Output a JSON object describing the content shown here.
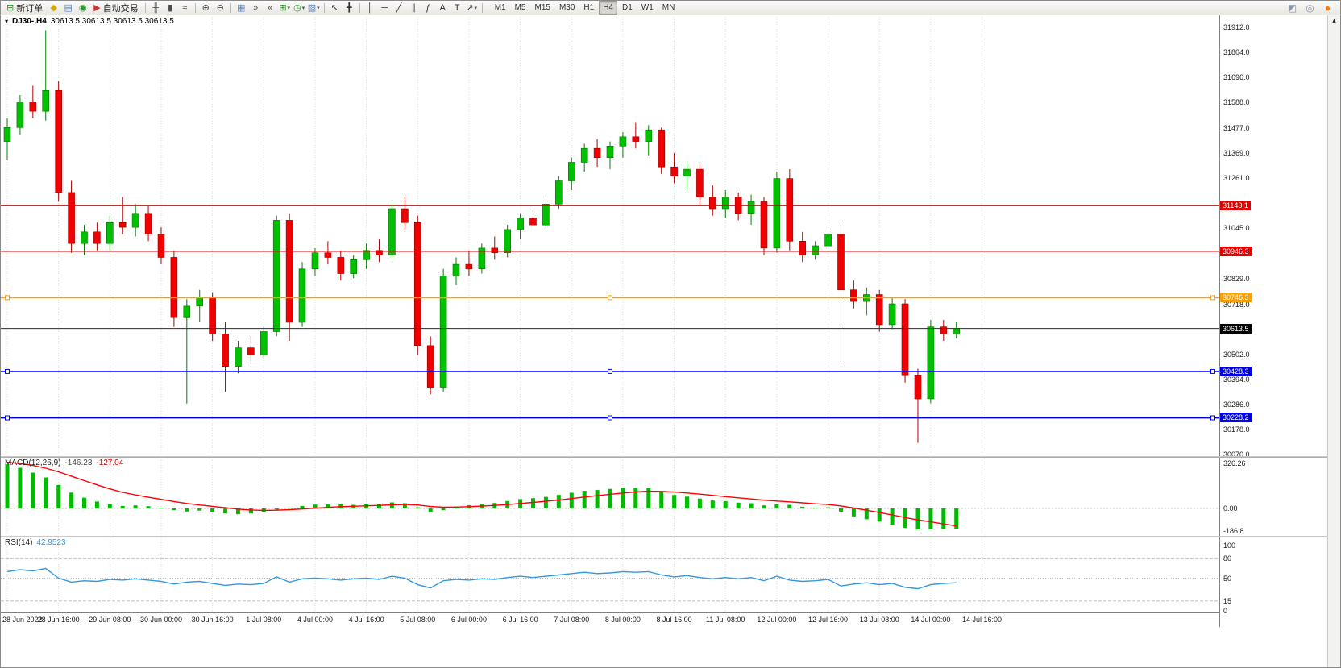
{
  "toolbar": {
    "items": [
      {
        "type": "button",
        "name": "new-order-button",
        "glyph": "⊞",
        "color": "#1f9d1f",
        "label": "新订单"
      },
      {
        "type": "icon",
        "name": "market-watch-icon",
        "glyph": "◆",
        "color": "#d9a600"
      },
      {
        "type": "icon",
        "name": "data-window-icon",
        "glyph": "▤",
        "color": "#5b7fae"
      },
      {
        "type": "icon",
        "name": "navigator-icon",
        "glyph": "◉",
        "color": "#2a9d2a"
      },
      {
        "type": "button",
        "name": "auto-trading-button",
        "glyph": "▶",
        "color": "#cc3333",
        "label": "自动交易"
      },
      {
        "type": "sep"
      },
      {
        "type": "icon",
        "name": "bar-chart-type-icon",
        "glyph": "╫",
        "color": "#4a4a4a"
      },
      {
        "type": "icon",
        "name": "candlestick-type-icon",
        "glyph": "▮",
        "color": "#4a4a4a"
      },
      {
        "type": "icon",
        "name": "line-chart-type-icon",
        "glyph": "≈",
        "color": "#4a4a4a"
      },
      {
        "type": "sep"
      },
      {
        "type": "icon",
        "name": "zoom-in-icon",
        "glyph": "⊕",
        "color": "#4a4a4a"
      },
      {
        "type": "icon",
        "name": "zoom-out-icon",
        "glyph": "⊖",
        "color": "#4a4a4a"
      },
      {
        "type": "sep"
      },
      {
        "type": "icon",
        "name": "tile-windows-icon",
        "glyph": "▦",
        "color": "#5b7fae"
      },
      {
        "type": "icon",
        "name": "auto-scroll-icon",
        "glyph": "»",
        "color": "#4a4a4a"
      },
      {
        "type": "icon",
        "name": "chart-shift-icon",
        "glyph": "«",
        "color": "#4a4a4a"
      },
      {
        "type": "dropdown",
        "name": "indicators-menu",
        "glyph": "⊞",
        "color": "#2a9d2a"
      },
      {
        "type": "dropdown",
        "name": "periods-menu",
        "glyph": "◷",
        "color": "#2a9d2a"
      },
      {
        "type": "dropdown",
        "name": "templates-menu",
        "glyph": "▧",
        "color": "#5b7fae"
      },
      {
        "type": "sep"
      },
      {
        "type": "icon",
        "name": "cursor-icon",
        "glyph": "↖",
        "color": "#333333"
      },
      {
        "type": "icon",
        "name": "crosshair-icon",
        "glyph": "╋",
        "color": "#333333"
      },
      {
        "type": "sep"
      },
      {
        "type": "icon",
        "name": "vertical-line-icon",
        "glyph": "│",
        "color": "#333333"
      },
      {
        "type": "icon",
        "name": "horizontal-line-icon",
        "glyph": "─",
        "color": "#333333"
      },
      {
        "type": "icon",
        "name": "trendline-icon",
        "glyph": "╱",
        "color": "#333333"
      },
      {
        "type": "icon",
        "name": "equidistant-channel-icon",
        "glyph": "∥",
        "color": "#333333"
      },
      {
        "type": "icon",
        "name": "fibonacci-icon",
        "glyph": "ƒ",
        "color": "#333333"
      },
      {
        "type": "icon",
        "name": "text-icon",
        "glyph": "A",
        "color": "#333333"
      },
      {
        "type": "icon",
        "name": "text-label-icon",
        "glyph": "T",
        "color": "#333333"
      },
      {
        "type": "dropdown",
        "name": "arrows-menu",
        "glyph": "↗",
        "color": "#333333"
      },
      {
        "type": "sep"
      }
    ],
    "timeframes": {
      "options": [
        "M1",
        "M5",
        "M15",
        "M30",
        "H1",
        "H4",
        "D1",
        "W1",
        "MN"
      ],
      "active": "H4"
    },
    "right_items": [
      {
        "name": "metatrader-community-icon",
        "glyph": "◩",
        "color": "#8a98a8"
      },
      {
        "name": "search-icon",
        "glyph": "◎",
        "color": "#8a98a8"
      },
      {
        "name": "notifications-badge",
        "glyph": "●",
        "color": "#ff7a00"
      }
    ]
  },
  "chart": {
    "title": "DJ30-,H4",
    "ohlc": "30613.5 30613.5 30613.5 30613.5",
    "icons": {
      "symbol_menu": "▾",
      "scroll_up": "▴"
    }
  },
  "price_axis": {
    "labels": [
      "31912.0",
      "31804.0",
      "31696.0",
      "31588.0",
      "31477.0",
      "31369.0",
      "31261.0",
      "31045.0",
      "30829.0",
      "30718.0",
      "30502.0",
      "30394.0",
      "30286.0",
      "30178.0",
      "30070.0"
    ]
  },
  "chart_data": {
    "type": "candlestick",
    "symbol": "DJ30-",
    "period": "H4",
    "title": "DJ30-,H4 30613.5 30613.5 30613.5 30613.5",
    "price_range": [
      30070,
      31912
    ],
    "current_price": 30613.5,
    "up_color": "#00C000",
    "down_color": "#F00000",
    "bars_per_label": 4,
    "time_labels": [
      "28 Jun 2022",
      "28 Jun 16:00",
      "29 Jun 08:00",
      "30 Jun 00:00",
      "30 Jun 16:00",
      "1 Jul 08:00",
      "4 Jul 00:00",
      "4 Jul 16:00",
      "5 Jul 08:00",
      "6 Jul 00:00",
      "6 Jul 16:00",
      "7 Jul 08:00",
      "8 Jul 00:00",
      "8 Jul 16:00",
      "11 Jul 08:00",
      "12 Jul 00:00",
      "12 Jul 16:00",
      "13 Jul 08:00",
      "14 Jul 00:00",
      "14 Jul 16:00"
    ],
    "candles_ohlc": [
      [
        31420,
        31520,
        31340,
        31480
      ],
      [
        31480,
        31620,
        31450,
        31590
      ],
      [
        31590,
        31660,
        31520,
        31550
      ],
      [
        31550,
        31900,
        31510,
        31640
      ],
      [
        31640,
        31680,
        31160,
        31200
      ],
      [
        31200,
        31250,
        30940,
        30980
      ],
      [
        30980,
        31060,
        30930,
        31030
      ],
      [
        31030,
        31070,
        30950,
        30980
      ],
      [
        30980,
        31100,
        30950,
        31070
      ],
      [
        31070,
        31180,
        31020,
        31050
      ],
      [
        31050,
        31150,
        31010,
        31110
      ],
      [
        31110,
        31140,
        30990,
        31020
      ],
      [
        31020,
        31050,
        30890,
        30920
      ],
      [
        30920,
        30950,
        30620,
        30660
      ],
      [
        30660,
        30740,
        30290,
        30710
      ],
      [
        30710,
        30780,
        30640,
        30750
      ],
      [
        30750,
        30770,
        30560,
        30590
      ],
      [
        30590,
        30640,
        30340,
        30450
      ],
      [
        30450,
        30560,
        30420,
        30530
      ],
      [
        30530,
        30580,
        30460,
        30500
      ],
      [
        30500,
        30620,
        30480,
        30600
      ],
      [
        30600,
        31100,
        30580,
        31080
      ],
      [
        31080,
        31110,
        30560,
        30640
      ],
      [
        30640,
        30900,
        30620,
        30870
      ],
      [
        30870,
        30960,
        30840,
        30940
      ],
      [
        30940,
        30990,
        30890,
        30920
      ],
      [
        30920,
        30950,
        30820,
        30850
      ],
      [
        30850,
        30930,
        30830,
        30910
      ],
      [
        30910,
        30980,
        30870,
        30950
      ],
      [
        30950,
        31000,
        30900,
        30930
      ],
      [
        30930,
        31160,
        30910,
        31130
      ],
      [
        31130,
        31180,
        31040,
        31070
      ],
      [
        31070,
        31100,
        30500,
        30540
      ],
      [
        30540,
        30580,
        30330,
        30360
      ],
      [
        30360,
        30870,
        30340,
        30840
      ],
      [
        30840,
        30920,
        30800,
        30890
      ],
      [
        30890,
        30950,
        30840,
        30870
      ],
      [
        30870,
        30980,
        30850,
        30960
      ],
      [
        30960,
        31010,
        30910,
        30940
      ],
      [
        30940,
        31060,
        30920,
        31040
      ],
      [
        31040,
        31110,
        31000,
        31090
      ],
      [
        31090,
        31130,
        31030,
        31060
      ],
      [
        31060,
        31170,
        31040,
        31150
      ],
      [
        31150,
        31270,
        31130,
        31250
      ],
      [
        31250,
        31350,
        31210,
        31330
      ],
      [
        31330,
        31410,
        31290,
        31390
      ],
      [
        31390,
        31430,
        31310,
        31350
      ],
      [
        31350,
        31420,
        31300,
        31400
      ],
      [
        31400,
        31460,
        31350,
        31440
      ],
      [
        31440,
        31500,
        31390,
        31420
      ],
      [
        31420,
        31490,
        31360,
        31470
      ],
      [
        31470,
        31480,
        31280,
        31310
      ],
      [
        31310,
        31370,
        31240,
        31270
      ],
      [
        31270,
        31330,
        31210,
        31300
      ],
      [
        31300,
        31320,
        31150,
        31180
      ],
      [
        31180,
        31230,
        31100,
        31130
      ],
      [
        31130,
        31210,
        31090,
        31180
      ],
      [
        31180,
        31200,
        31080,
        31110
      ],
      [
        31110,
        31190,
        31060,
        31160
      ],
      [
        31160,
        31180,
        30930,
        30960
      ],
      [
        30960,
        31290,
        30940,
        31260
      ],
      [
        31260,
        31300,
        30950,
        30990
      ],
      [
        30990,
        31030,
        30900,
        30930
      ],
      [
        30930,
        30990,
        30910,
        30970
      ],
      [
        30970,
        31040,
        30950,
        31020
      ],
      [
        31020,
        31080,
        30450,
        30780
      ],
      [
        30780,
        30820,
        30700,
        30730
      ],
      [
        30730,
        30790,
        30670,
        30760
      ],
      [
        30760,
        30780,
        30600,
        30630
      ],
      [
        30630,
        30750,
        30610,
        30720
      ],
      [
        30720,
        30740,
        30380,
        30410
      ],
      [
        30410,
        30440,
        30120,
        30310
      ],
      [
        30310,
        30650,
        30290,
        30620
      ],
      [
        30620,
        30650,
        30560,
        30590
      ],
      [
        30590,
        30640,
        30570,
        30613.5
      ]
    ],
    "lines": [
      {
        "name": "resistance-line-upper",
        "price": 31143.1,
        "label": "31143.1",
        "color": "#E40000",
        "width": 1.3,
        "handles": false
      },
      {
        "name": "resistance-line-lower",
        "price": 30946.3,
        "label": "30946.3",
        "color": "#E40000",
        "width": 1.3,
        "handles": false
      },
      {
        "name": "pivot-line-orange",
        "price": 30746.3,
        "label": "30746.3",
        "color": "#FFA000",
        "width": 1.6,
        "handles": true
      },
      {
        "name": "current-price-line",
        "price": 30613.5,
        "label": "30613.5",
        "color": "#2a2a2a",
        "width": 1,
        "handles": false,
        "label_bg": "#000000"
      },
      {
        "name": "support-line-upper",
        "price": 30428.3,
        "label": "30428.3",
        "color": "#0000E6",
        "width": 1.8,
        "handles": true
      },
      {
        "name": "support-line-lower",
        "price": 30228.2,
        "label": "30228.2",
        "color": "#0000E6",
        "width": 1.8,
        "handles": true
      }
    ]
  },
  "macd": {
    "name": "MACD(12,26,9)",
    "value_macd": "-146.23",
    "value_signal": "-127.04",
    "axis": [
      "326.26",
      "0.00",
      "-186.8"
    ],
    "histogram_color": "#00BB00",
    "signal_color": "#FF0000",
    "histogram": [
      320,
      295,
      260,
      225,
      170,
      115,
      78,
      50,
      30,
      18,
      22,
      16,
      6,
      -12,
      -22,
      -16,
      -26,
      -36,
      -42,
      -36,
      -26,
      -8,
      4,
      18,
      28,
      34,
      30,
      26,
      30,
      34,
      44,
      38,
      8,
      -28,
      -12,
      14,
      24,
      34,
      40,
      54,
      68,
      74,
      84,
      98,
      114,
      128,
      134,
      142,
      148,
      150,
      146,
      122,
      98,
      86,
      72,
      58,
      52,
      42,
      38,
      22,
      30,
      26,
      12,
      6,
      8,
      -24,
      -58,
      -78,
      -96,
      -118,
      -140,
      -152,
      -150,
      -148,
      -146.23
    ],
    "signal": [
      335,
      326,
      312,
      292,
      266,
      234,
      202,
      171,
      142,
      117,
      98,
      81,
      66,
      50,
      36,
      25,
      15,
      5,
      -5,
      -11,
      -14,
      -13,
      -9,
      -4,
      2,
      8,
      13,
      16,
      19,
      22,
      26,
      29,
      25,
      14,
      9,
      10,
      13,
      17,
      22,
      28,
      36,
      44,
      52,
      61,
      72,
      83,
      93,
      103,
      112,
      120,
      125,
      124,
      119,
      112,
      104,
      95,
      86,
      77,
      69,
      60,
      54,
      48,
      41,
      34,
      29,
      18,
      3,
      -13,
      -30,
      -47,
      -66,
      -83,
      -97,
      -112,
      -127.04
    ]
  },
  "rsi": {
    "name": "RSI(14)",
    "value": "42.9523",
    "axis": [
      "100",
      "80",
      "50",
      "15",
      "0"
    ],
    "levels": [
      80,
      50,
      15
    ],
    "line_color": "#3399DD",
    "values": [
      60,
      63,
      61,
      65,
      50,
      44,
      46,
      45,
      48,
      47,
      49,
      47,
      45,
      41,
      44,
      45,
      42,
      39,
      41,
      40,
      42,
      52,
      44,
      49,
      50,
      49,
      47,
      49,
      50,
      48,
      53,
      50,
      40,
      35,
      46,
      48,
      47,
      49,
      48,
      51,
      53,
      51,
      53,
      55,
      57,
      59,
      57,
      58,
      60,
      59,
      60,
      55,
      52,
      54,
      51,
      49,
      51,
      49,
      51,
      46,
      53,
      47,
      45,
      46,
      48,
      38,
      41,
      43,
      40,
      42,
      36,
      34,
      40,
      42,
      42.95
    ]
  }
}
